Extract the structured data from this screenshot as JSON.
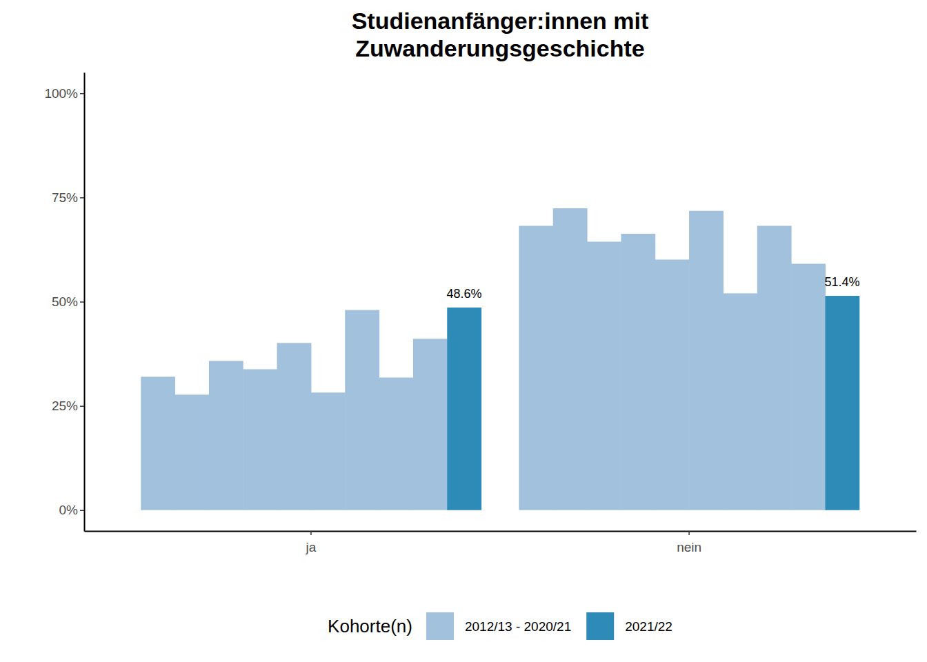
{
  "chart_data": {
    "type": "bar",
    "title": "Studienanfänger:innen mit\nZuwanderungsgeschichte",
    "categories": [
      "ja",
      "nein"
    ],
    "series": [
      {
        "name": "2012/13 - 2020/21",
        "color": "#a1c1dd",
        "values": [
          [
            32.0,
            27.7,
            35.8,
            33.8,
            40.1,
            28.2,
            48.0,
            31.8,
            41.1
          ],
          [
            68.2,
            72.4,
            64.4,
            66.3,
            60.1,
            71.8,
            52.0,
            68.2,
            59.1
          ]
        ]
      },
      {
        "name": "2021/22",
        "color": "#2e8bb7",
        "values": [
          48.6,
          51.4
        ],
        "data_labels": true,
        "value_labels": [
          "48.6%",
          "51.4%"
        ]
      }
    ],
    "ylim": [
      -5,
      105
    ],
    "yticks": [
      {
        "value": 0,
        "label": "0%"
      },
      {
        "value": 25,
        "label": "25%"
      },
      {
        "value": 50,
        "label": "50%"
      },
      {
        "value": 75,
        "label": "75%"
      },
      {
        "value": 100,
        "label": "100%"
      }
    ],
    "grid": false,
    "legend": "bottom",
    "legend_title": "Kohorte(n)"
  }
}
